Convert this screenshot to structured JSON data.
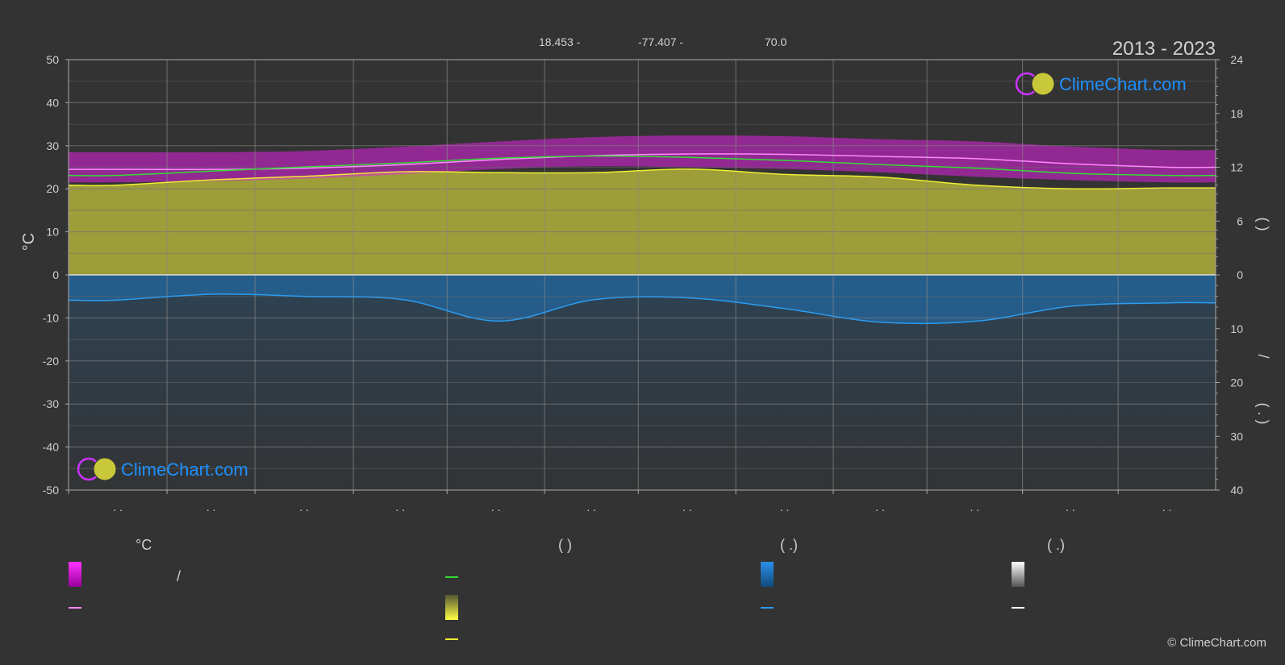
{
  "header": {
    "latitude": "18.453 -",
    "longitude": "-77.407 -",
    "elevation": "70.0",
    "years": "2013 - 2023"
  },
  "axes": {
    "left_unit": "°C",
    "left_ticks": [
      "50",
      "40",
      "30",
      "20",
      "10",
      "0",
      "-10",
      "-20",
      "-30",
      "-40",
      "-50"
    ],
    "right_top_ticks": [
      "24",
      "18",
      "12",
      "6",
      "0"
    ],
    "right_bottom_ticks": [
      "10",
      "20",
      "30",
      "40"
    ],
    "right_top_label": "(   )",
    "right_bottom_label": "/",
    "right_bottom_label2": "( . )",
    "month_labels": [
      ". .",
      ". .",
      ". .",
      ". .",
      ". .",
      ". .",
      ". .",
      ". .",
      ". .",
      ". .",
      ". .",
      ". ."
    ]
  },
  "legend": {
    "col1_title": "°C",
    "col1_item1": "/",
    "col2_title": "(          )",
    "col3_title": "(   .)",
    "col4_title": "(   .)"
  },
  "brand": {
    "name": "ClimeChart.com",
    "copyright": "© ClimeChart.com"
  },
  "colors": {
    "background": "#333333",
    "temp_range": "#e020e0",
    "max_line": "#ff88ff",
    "mean_line": "#33dd33",
    "sunshine_fill": "#a8a83a",
    "sunshine_line": "#eeee33",
    "precip": "#1f6fb0",
    "precip_line": "#2b9cf0",
    "white": "#ffffff"
  },
  "chart_data": {
    "type": "line",
    "x": [
      0.5,
      1.5,
      2.5,
      3.5,
      4.5,
      5.5,
      6.5,
      7.5,
      8.5,
      9.5,
      10.5,
      11.5
    ],
    "x_range": [
      0,
      12
    ],
    "ylim": [
      -50,
      50
    ],
    "ylim_right_top": [
      0,
      24
    ],
    "ylim_right_bottom": [
      0,
      40
    ],
    "series": [
      {
        "key": "temp_max",
        "color_key": "max_line",
        "values": [
          24.5,
          24.5,
          24.8,
          25.6,
          26.8,
          27.7,
          28.1,
          28.0,
          27.5,
          27.0,
          25.8,
          25.0
        ]
      },
      {
        "key": "temp_mean",
        "color_key": "mean_line",
        "values": [
          23.1,
          24.1,
          25.1,
          26.0,
          27.1,
          27.6,
          27.3,
          26.6,
          25.6,
          24.8,
          23.6,
          23.1
        ]
      },
      {
        "key": "sunshine_hours",
        "axis": "right_top",
        "color_key": "sunshine_line",
        "values": [
          10.0,
          10.6,
          11.0,
          11.5,
          11.4,
          11.4,
          11.8,
          11.2,
          10.9,
          10.0,
          9.6,
          9.7
        ]
      },
      {
        "key": "precip_mm",
        "axis": "right_bottom",
        "color_key": "precip_line",
        "values": [
          4.7,
          3.6,
          4.0,
          4.6,
          8.6,
          4.6,
          4.3,
          6.3,
          8.8,
          8.6,
          5.8,
          5.2
        ]
      }
    ],
    "temp_range_top": [
      28.5,
      28.5,
      28.8,
      29.8,
      31.0,
      32.0,
      32.4,
      32.2,
      31.5,
      31.0,
      29.8,
      29.0
    ],
    "temp_range_bottom": [
      21.5,
      21.8,
      22.4,
      23.4,
      24.6,
      25.2,
      25.0,
      24.6,
      23.8,
      22.8,
      22.0,
      21.5
    ],
    "grid": true
  }
}
